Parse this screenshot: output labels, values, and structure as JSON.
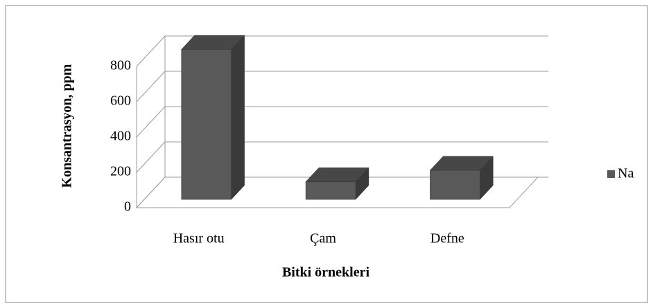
{
  "chart_data": {
    "type": "bar3d",
    "x_label": "Bitki örnekleri",
    "y_label": "Konsantrasyon, ppm",
    "categories": [
      "Hasır otu",
      "Çam",
      "Defne"
    ],
    "series": [
      {
        "name": "Na",
        "color": "#595959",
        "values": [
          850,
          100,
          165
        ]
      }
    ],
    "ylim": [
      0,
      800
    ],
    "yticks": [
      0,
      200,
      400,
      600,
      800
    ],
    "grid": true,
    "legend": "right"
  }
}
